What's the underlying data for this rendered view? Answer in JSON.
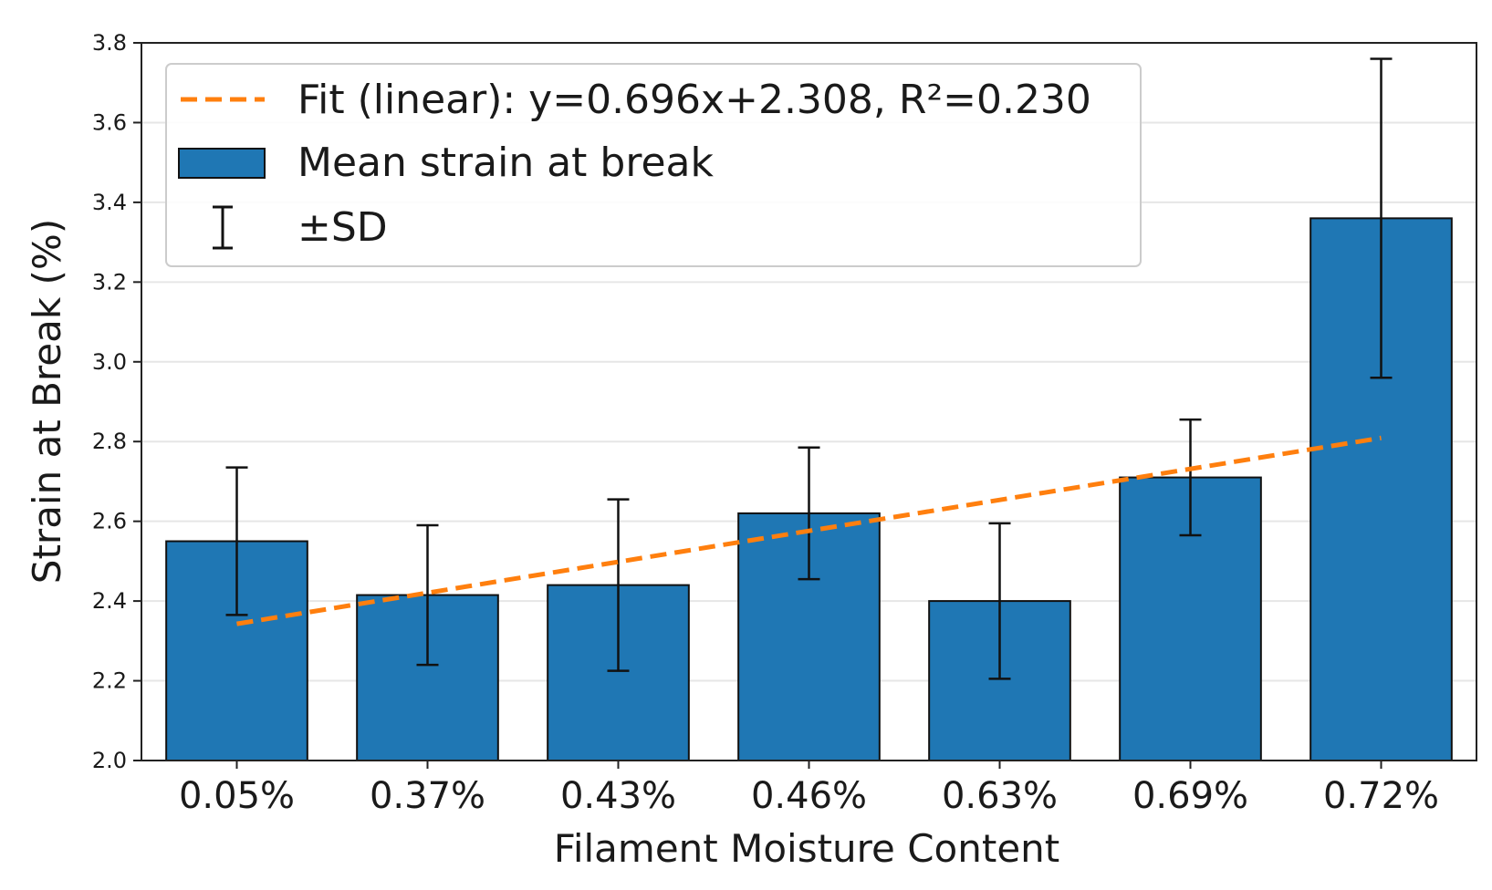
{
  "chart_data": {
    "type": "bar",
    "title": "",
    "xlabel": "Filament Moisture Content",
    "ylabel": "Strain at Break (%)",
    "categories": [
      "0.05%",
      "0.37%",
      "0.43%",
      "0.46%",
      "0.63%",
      "0.69%",
      "0.72%"
    ],
    "series": [
      {
        "name": "Mean strain at break",
        "values": [
          2.55,
          2.415,
          2.44,
          2.62,
          2.4,
          2.71,
          3.36
        ],
        "sd": [
          0.185,
          0.175,
          0.215,
          0.165,
          0.195,
          0.145,
          0.4
        ],
        "color": "#1f77b4"
      }
    ],
    "errorbar_label": "±SD",
    "fit": {
      "label": "Fit (linear): y=0.696x+2.308, R²=0.230",
      "slope": 0.696,
      "intercept": 2.308,
      "color": "#ff7f0e",
      "style": "dashed"
    },
    "ylim": [
      2.0,
      3.8
    ],
    "yticks": [
      "2.0",
      "2.2",
      "2.4",
      "2.6",
      "2.8",
      "3.0",
      "3.2",
      "3.4",
      "3.6",
      "3.8"
    ],
    "grid": "horizontal",
    "legend_position": "top-left"
  }
}
